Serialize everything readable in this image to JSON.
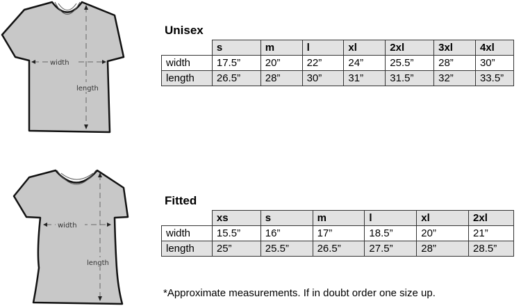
{
  "diagram_labels": {
    "width": "width",
    "length": "length"
  },
  "unisex": {
    "title": "Unisex",
    "sizes": [
      "s",
      "m",
      "l",
      "xl",
      "2xl",
      "3xl",
      "4xl"
    ],
    "rows": [
      {
        "label": "width",
        "values": [
          "17.5”",
          "20”",
          "22”",
          "24”",
          "25.5”",
          "28”",
          "30”"
        ]
      },
      {
        "label": "length",
        "values": [
          "26.5”",
          "28”",
          "30”",
          "31”",
          "31.5”",
          "32”",
          "33.5”"
        ]
      }
    ]
  },
  "fitted": {
    "title": "Fitted",
    "sizes": [
      "xs",
      "s",
      "m",
      "l",
      "xl",
      "2xl"
    ],
    "rows": [
      {
        "label": "width",
        "values": [
          "15.5”",
          "16”",
          "17”",
          "18.5”",
          "20”",
          "21”"
        ]
      },
      {
        "label": "length",
        "values": [
          "25”",
          "25.5”",
          "26.5”",
          "27.5”",
          "28”",
          "28.5”"
        ]
      }
    ]
  },
  "footnote": "*Approximate measurements. If in doubt order one size up.",
  "colors": {
    "shirt": "#c8c8c8",
    "row_shade": "#e2e2e2"
  }
}
